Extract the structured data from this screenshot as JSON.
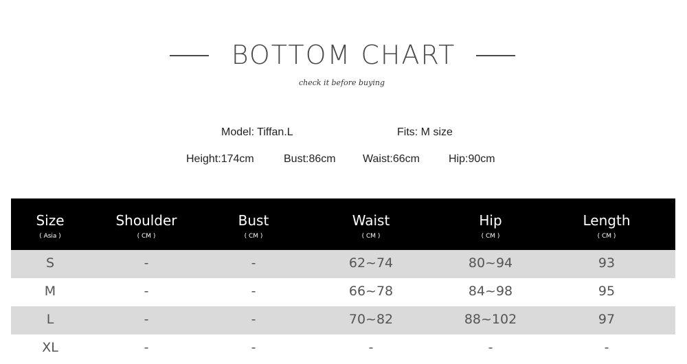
{
  "title": "BOTTOM CHART",
  "subtitle": "check it before buying",
  "model": {
    "name": "Model: Tiffan.L",
    "fits": "Fits: M size",
    "height": "Height:174cm",
    "bust": "Bust:86cm",
    "waist": "Waist:66cm",
    "hip": "Hip:90cm"
  },
  "table": {
    "headers": [
      {
        "name": "Size",
        "unit": "( Asia )"
      },
      {
        "name": "Shoulder",
        "unit": "( CM )"
      },
      {
        "name": "Bust",
        "unit": "( CM )"
      },
      {
        "name": "Waist",
        "unit": "( CM )"
      },
      {
        "name": "Hip",
        "unit": "( CM )"
      },
      {
        "name": "Length",
        "unit": "( CM )"
      }
    ],
    "rows": [
      [
        "S",
        "-",
        "-",
        "62~74",
        "80~94",
        "93"
      ],
      [
        "M",
        "-",
        "-",
        "66~78",
        "84~98",
        "95"
      ],
      [
        "L",
        "-",
        "-",
        "70~82",
        "88~102",
        "97"
      ],
      [
        "XL",
        "-",
        "-",
        "-",
        "-",
        "-"
      ]
    ]
  }
}
